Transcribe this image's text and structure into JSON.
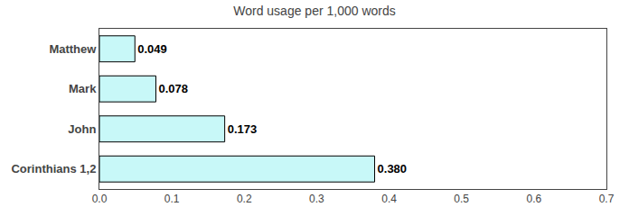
{
  "chart_data": {
    "type": "bar",
    "orientation": "horizontal",
    "title": "Word usage per 1,000 words",
    "categories": [
      "Corinthians 1,2",
      "John",
      "Mark",
      "Matthew"
    ],
    "values": [
      0.38,
      0.173,
      0.078,
      0.049
    ],
    "value_labels": [
      "0.380",
      "0.173",
      "0.078",
      "0.049"
    ],
    "data_labels": true,
    "color": "#c8f8f8",
    "xlim": [
      0.0,
      0.7
    ],
    "xticks": [
      {
        "value": 0,
        "label": "0.0"
      },
      0.1,
      0.2,
      0.3,
      0.4,
      0.5,
      0.6,
      0.7
    ],
    "grid": false
  }
}
